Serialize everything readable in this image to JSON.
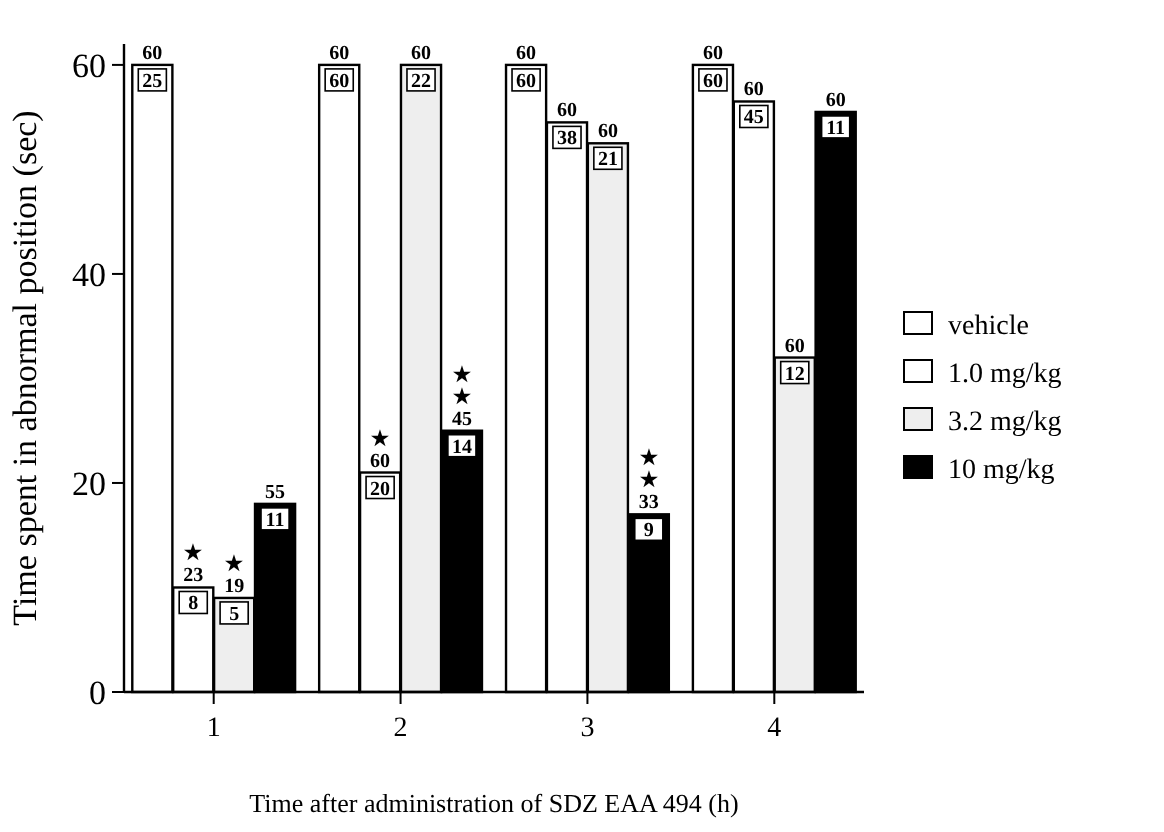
{
  "chart_data": {
    "type": "bar",
    "xlabel": "Time after administration of SDZ EAA 494  (h)",
    "ylabel": "Time spent in abnormal position (sec)",
    "categories": [
      "1",
      "2",
      "3",
      "4"
    ],
    "ylim": [
      0,
      62
    ],
    "yticks": [
      0,
      20,
      40,
      60
    ],
    "grid": false,
    "legend": "right",
    "series": [
      {
        "name": "vehicle",
        "color": "#ffffff",
        "values": [
          60,
          60,
          60,
          60
        ]
      },
      {
        "name": "1.0 mg/kg",
        "color": "#ffffff",
        "values": [
          10,
          21,
          54.5,
          56.5
        ]
      },
      {
        "name": "3.2 mg/kg",
        "color": "#eeeeee",
        "values": [
          9,
          60,
          52.5,
          32
        ]
      },
      {
        "name": "10 mg/kg",
        "color": "#000000",
        "values": [
          18,
          25,
          17,
          55.5
        ]
      }
    ],
    "annotations": [
      "60",
      "25",
      "★ 23",
      "8",
      "★ 19",
      "5",
      "55",
      "11",
      "60",
      "60",
      "★ 60",
      "20",
      "60",
      "22",
      "★ ★ 45",
      "14",
      "60",
      "60",
      "60",
      "38",
      "60",
      "21",
      "★ ★ 33",
      "9",
      "60",
      "60",
      "60",
      "45",
      "60",
      "12",
      "60",
      "11"
    ]
  }
}
